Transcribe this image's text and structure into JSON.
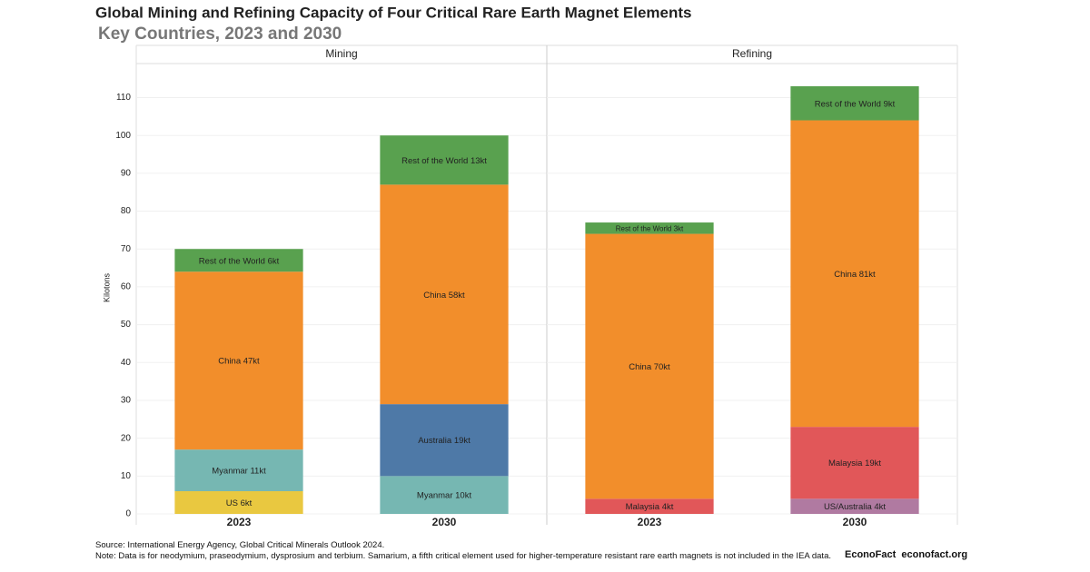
{
  "title": "Global Mining and Refining Capacity of Four Critical Rare Earth Magnet Elements",
  "subtitle": "Key Countries, 2023 and 2030",
  "ylabel": "Kilotons",
  "source": "Source: International Energy Agency, Global Critical Minerals Outlook 2024.",
  "note": "Note: Data is for neodymium, praseodymium, dysprosium and terbium. Samarium, a fifth critical element used for higher-temperature resistant rare earth magnets is not included in the IEA data.",
  "brand": [
    "EconoFact",
    "econofact.org"
  ],
  "chart_data": [
    {
      "type": "bar",
      "stacked": true,
      "title": "Mining",
      "categories": [
        "2023",
        "2030"
      ],
      "ylim": [
        0,
        119
      ],
      "yticks": [
        0,
        10,
        20,
        30,
        40,
        50,
        60,
        70,
        80,
        90,
        100,
        110
      ],
      "grid": true,
      "series": [
        {
          "color": "#e9c840",
          "values": [
            6,
            null
          ],
          "value_labels": [
            "US 6kt",
            null
          ]
        },
        {
          "color": "#76b7b2",
          "values": [
            11,
            10
          ],
          "value_labels": [
            "Myanmar 11kt",
            "Myanmar 10kt"
          ]
        },
        {
          "color": "#4e79a7",
          "values": [
            null,
            19
          ],
          "value_labels": [
            null,
            "Australia 19kt"
          ]
        },
        {
          "color": "#f28e2b",
          "values": [
            47,
            58
          ],
          "value_labels": [
            "China 47kt",
            "China 58kt"
          ]
        },
        {
          "color": "#59a14f",
          "values": [
            6,
            13
          ],
          "value_labels": [
            "Rest of the World 6kt",
            "Rest of the World 13kt"
          ]
        }
      ]
    },
    {
      "type": "bar",
      "stacked": true,
      "title": "Refining",
      "categories": [
        "2023",
        "2030"
      ],
      "ylim": [
        0,
        119
      ],
      "grid": true,
      "series": [
        {
          "color": "#b07aa1",
          "values": [
            null,
            4
          ],
          "value_labels": [
            null,
            "US/Australia 4kt"
          ]
        },
        {
          "color": "#e15759",
          "values": [
            4,
            19
          ],
          "value_labels": [
            "Malaysia 4kt",
            "Malaysia 19kt"
          ]
        },
        {
          "color": "#f28e2b",
          "values": [
            70,
            81
          ],
          "value_labels": [
            "China 70kt",
            "China 81kt"
          ]
        },
        {
          "color": "#59a14f",
          "values": [
            3,
            9
          ],
          "value_labels": [
            "Rest of the World 3kt",
            "Rest of the World 9kt"
          ]
        }
      ]
    }
  ]
}
